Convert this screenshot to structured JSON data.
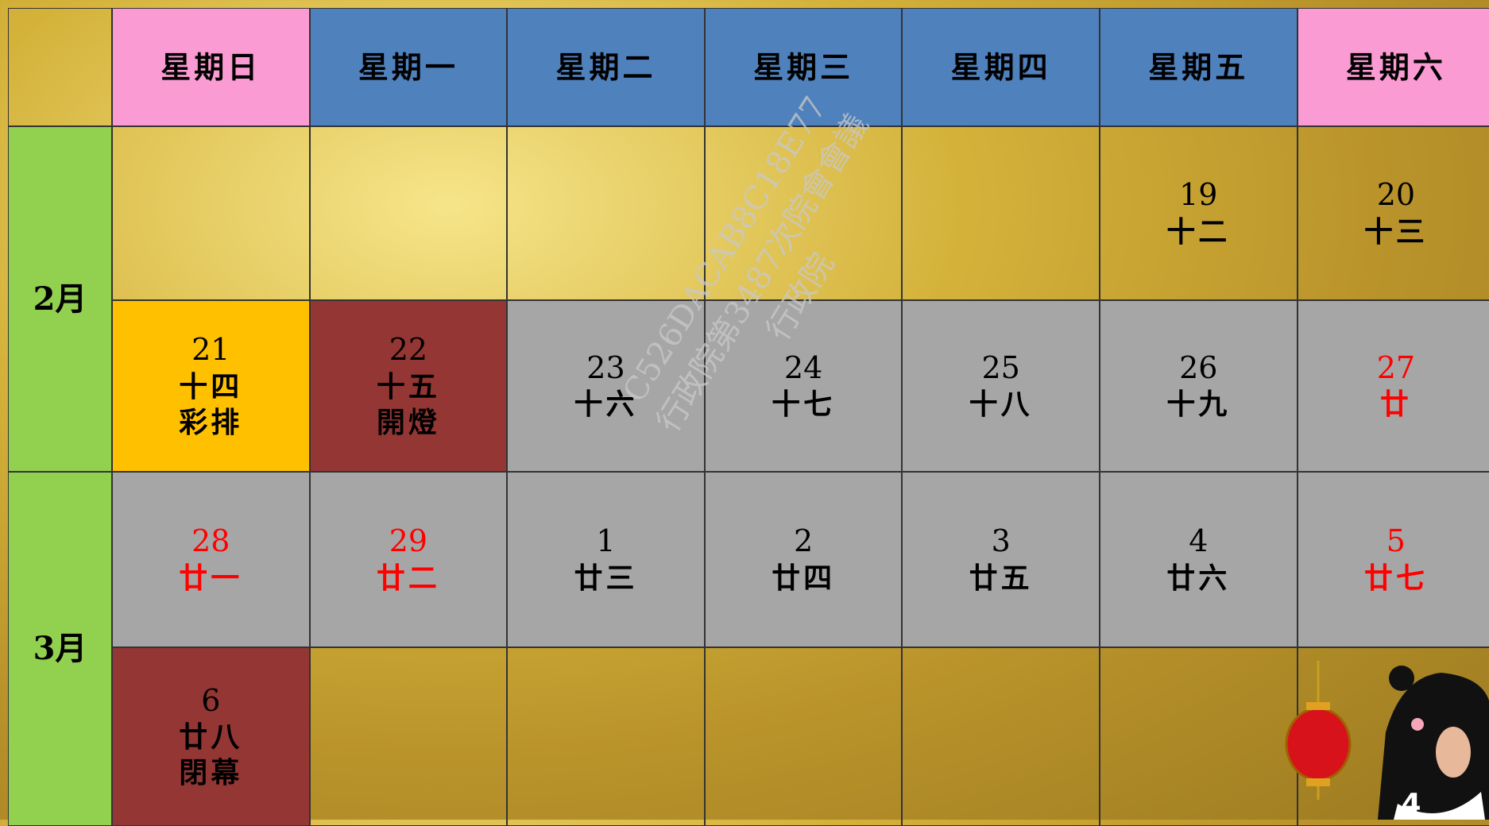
{
  "header": {
    "weekdays": [
      "星期日",
      "星期一",
      "星期二",
      "星期三",
      "星期四",
      "星期五",
      "星期六"
    ],
    "weekday_colors": [
      "#fb9bd3",
      "#4f81bd",
      "#4f81bd",
      "#4f81bd",
      "#4f81bd",
      "#4f81bd",
      "#fb9bd3"
    ]
  },
  "months": [
    {
      "label": "2月",
      "weeks": [
        {
          "cells": [
            null,
            null,
            null,
            null,
            null,
            {
              "date": "19",
              "lunar": "十二"
            },
            {
              "date": "20",
              "lunar": "十三"
            }
          ]
        },
        {
          "cells": [
            {
              "date": "21",
              "lunar": "十四",
              "note": "彩排",
              "background": "#ffc000"
            },
            {
              "date": "22",
              "lunar": "十五",
              "note": "開燈",
              "background": "#943634"
            },
            {
              "date": "23",
              "lunar": "十六",
              "background": "#a6a6a6"
            },
            {
              "date": "24",
              "lunar": "十七",
              "background": "#a6a6a6"
            },
            {
              "date": "25",
              "lunar": "十八",
              "background": "#a6a6a6"
            },
            {
              "date": "26",
              "lunar": "十九",
              "background": "#a6a6a6"
            },
            {
              "date": "27",
              "lunar": "廿",
              "background": "#a6a6a6",
              "color": "#ff0000"
            }
          ]
        }
      ]
    },
    {
      "label": "3月",
      "weeks": [
        {
          "cells": [
            {
              "date": "28",
              "lunar": "廿一",
              "background": "#a6a6a6",
              "color": "#ff0000"
            },
            {
              "date": "29",
              "lunar": "廿二",
              "background": "#a6a6a6",
              "color": "#ff0000"
            },
            {
              "date": "1",
              "lunar": "廿三",
              "background": "#a6a6a6"
            },
            {
              "date": "2",
              "lunar": "廿四",
              "background": "#a6a6a6"
            },
            {
              "date": "3",
              "lunar": "廿五",
              "background": "#a6a6a6"
            },
            {
              "date": "4",
              "lunar": "廿六",
              "background": "#a6a6a6"
            },
            {
              "date": "5",
              "lunar": "廿七",
              "background": "#a6a6a6",
              "color": "#ff0000"
            }
          ]
        },
        {
          "cells": [
            {
              "date": "6",
              "lunar": "廿八",
              "note": "閉幕",
              "background": "#943634"
            },
            null,
            null,
            null,
            null,
            null,
            null
          ]
        }
      ]
    }
  ],
  "watermark": [
    "C526DACAB8C18E77",
    "行政院第3487次院會會議",
    "行政院"
  ],
  "page_number": "4"
}
